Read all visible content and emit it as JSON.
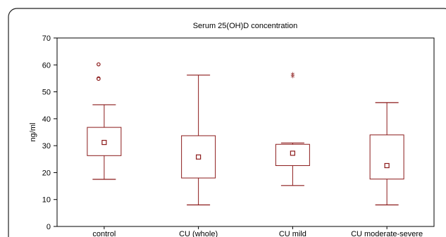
{
  "chart_data": {
    "type": "box",
    "title": "Serum 25(OH)D concentration",
    "xlabel": "",
    "ylabel": "ng/ml",
    "ylim": [
      0,
      70
    ],
    "yticks": [
      0,
      10,
      20,
      30,
      40,
      50,
      60,
      70
    ],
    "grid": false,
    "color": "#8b1a1a",
    "categories": [
      "control",
      "CU (whole)",
      "CU mild",
      "CU moderate-severe"
    ],
    "boxes": [
      {
        "category": "control",
        "whisker_low": 17.5,
        "q1": 26.3,
        "median": 31.2,
        "q3": 36.8,
        "whisker_high": 45.2,
        "outliers": [
          {
            "value": 60.2,
            "marker": "circle"
          },
          {
            "value": 55.0,
            "marker": "circle"
          },
          {
            "value": 54.8,
            "marker": "circle"
          }
        ]
      },
      {
        "category": "CU (whole)",
        "whisker_low": 8.0,
        "q1": 18.0,
        "median": 25.8,
        "q3": 33.7,
        "whisker_high": 56.2,
        "outliers": []
      },
      {
        "category": "CU mild",
        "whisker_low": 15.2,
        "q1": 22.6,
        "median": 27.2,
        "q3": 30.5,
        "whisker_high": 31.0,
        "outliers": [
          {
            "value": 56.3,
            "marker": "star"
          },
          {
            "value": 55.5,
            "marker": "star"
          }
        ]
      },
      {
        "category": "CU moderate-severe",
        "whisker_low": 8.0,
        "q1": 17.6,
        "median": 22.6,
        "q3": 34.0,
        "whisker_high": 46.0,
        "outliers": []
      }
    ]
  }
}
